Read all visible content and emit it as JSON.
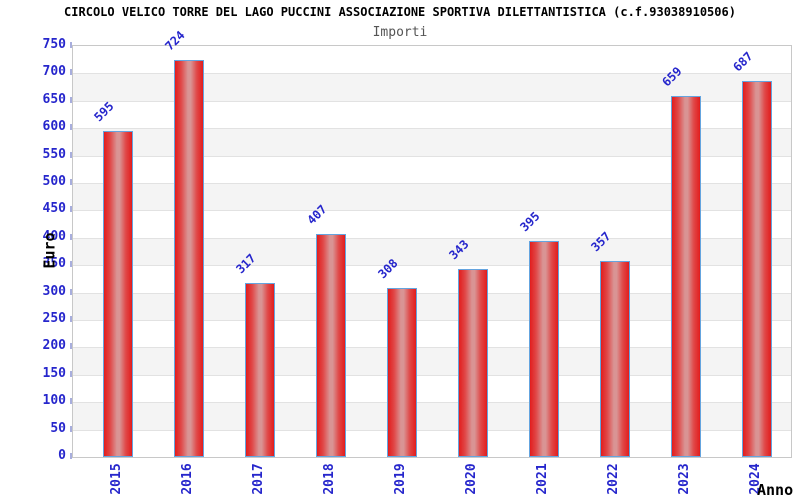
{
  "chart_data": {
    "type": "bar",
    "title": "CIRCOLO VELICO TORRE DEL LAGO PUCCINI ASSOCIAZIONE SPORTIVA DILETTANTISTICA (c.f.93038910506)",
    "subtitle": "Importi",
    "xlabel": "Anno",
    "ylabel": "Euro",
    "categories": [
      "2015",
      "2016",
      "2017",
      "2018",
      "2019",
      "2020",
      "2021",
      "2022",
      "2023",
      "2024"
    ],
    "values": [
      595,
      724,
      317,
      407,
      308,
      343,
      395,
      357,
      659,
      687
    ],
    "ylim": [
      0,
      750
    ],
    "ytick_step": 50,
    "grid": "horizontal gridlines every 50 with alternating white/gray bands",
    "legend": "none",
    "bar_labels_rotation_deg": -45,
    "xtick_rotation_deg": -90,
    "colors": {
      "bar_edge_red": "#e21d1d",
      "bar_mid_red": "#e04848",
      "bar_center_light": "#d99494",
      "bar_border_blue": "#64a4df",
      "label_blue": "#2626cc",
      "band_gray": "#f4f4f4",
      "gridline": "#e2e2e2",
      "axis_border": "#c8c8c8",
      "tick_mark": "#a8aedd",
      "title_color": "#000000",
      "subtitle_color": "#555555",
      "background": "#ffffff"
    }
  }
}
